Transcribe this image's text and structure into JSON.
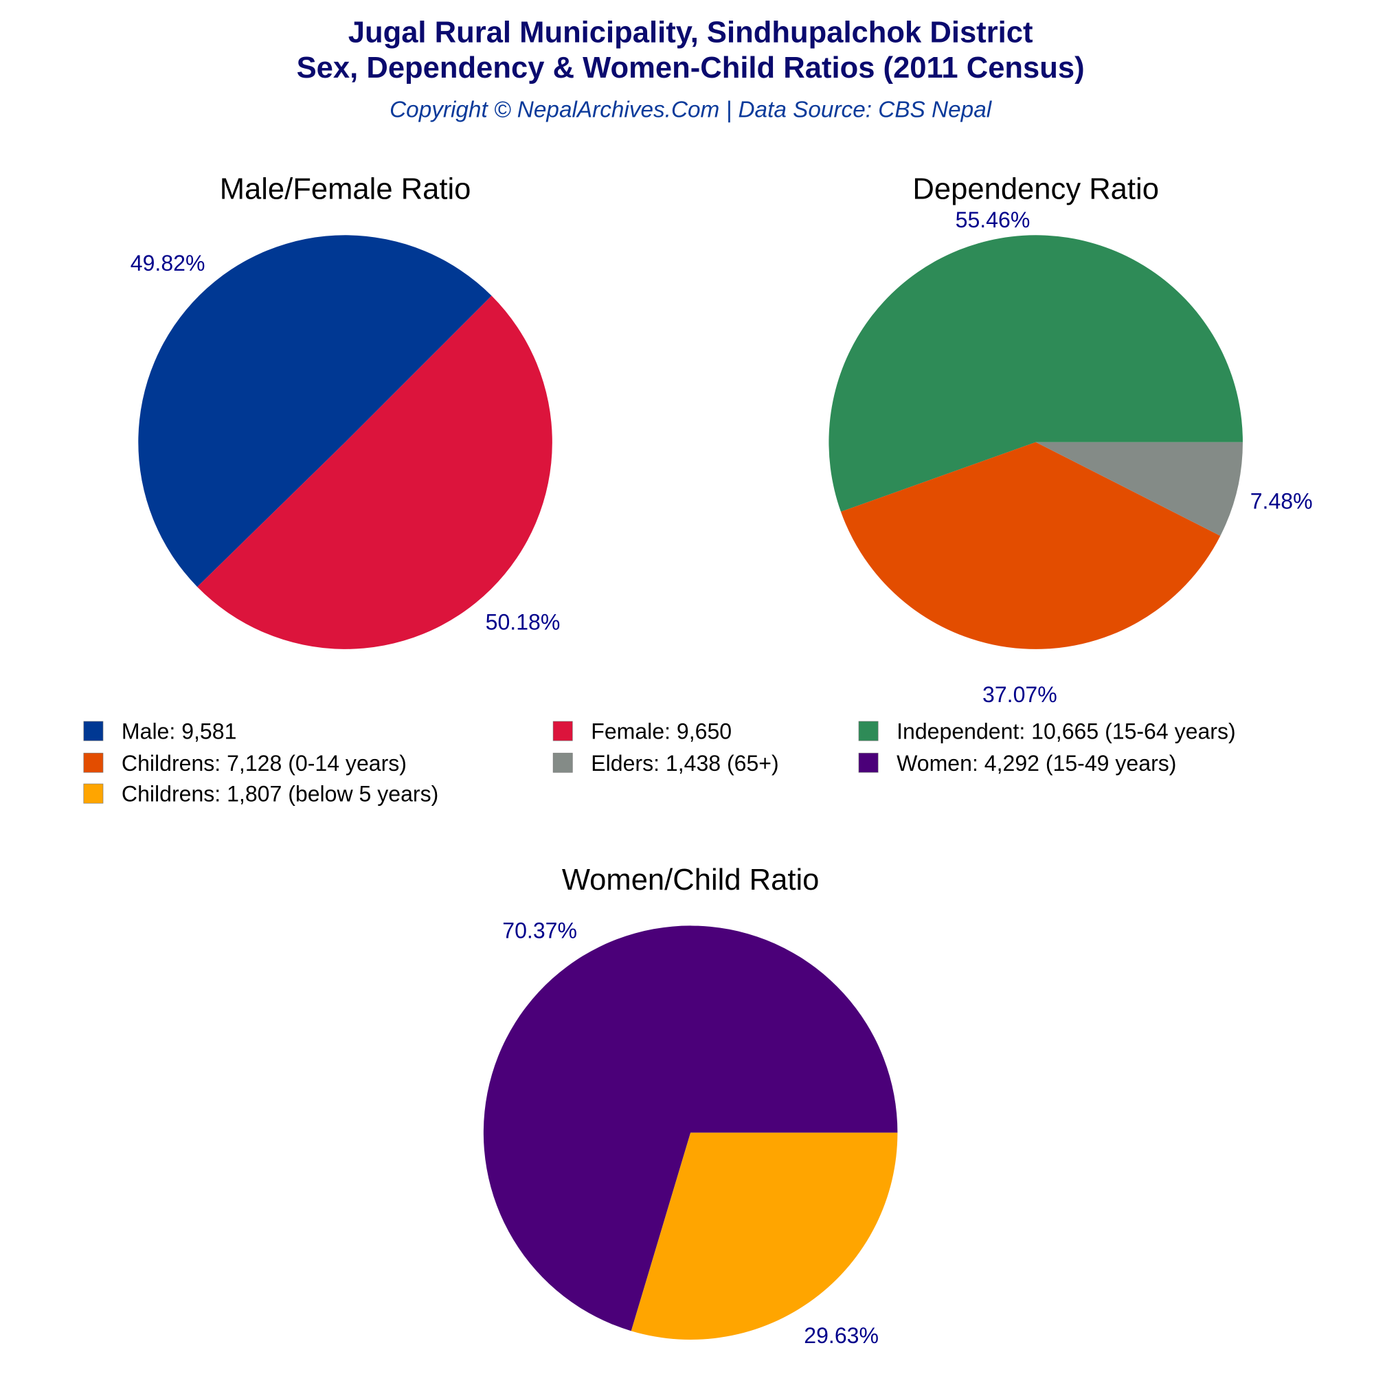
{
  "header": {
    "title_line1": "Jugal Rural Municipality, Sindhupalchok District",
    "title_line2": "Sex, Dependency & Women-Child Ratios (2011 Census)",
    "subtitle": "Copyright © NepalArchives.Com | Data Source: CBS Nepal"
  },
  "colors": {
    "title": "#0a0a6e",
    "subtitle": "#0a3a9a",
    "pct_label": "#00008b"
  },
  "chart_data": [
    {
      "type": "pie",
      "title": "Male/Female Ratio",
      "start_angle_deg": 45,
      "direction": "counterclockwise",
      "slices": [
        {
          "label": "Male",
          "value": 9581,
          "percent_label": "49.82%",
          "color": "#003893"
        },
        {
          "label": "Female",
          "value": 9650,
          "percent_label": "50.18%",
          "color": "#dc143c"
        }
      ]
    },
    {
      "type": "pie",
      "title": "Dependency Ratio",
      "start_angle_deg": 0,
      "direction": "counterclockwise",
      "slices": [
        {
          "label": "Independent",
          "value": 10665,
          "percent_label": "55.46%",
          "color": "#2e8b57"
        },
        {
          "label": "Childrens (0-14 years)",
          "value": 7128,
          "percent_label": "37.07%",
          "color": "#e34d00"
        },
        {
          "label": "Elders",
          "value": 1438,
          "percent_label": "7.48%",
          "color": "#848b87"
        }
      ]
    },
    {
      "type": "pie",
      "title": "Women/Child Ratio",
      "start_angle_deg": 0,
      "direction": "counterclockwise",
      "slices": [
        {
          "label": "Women",
          "value": 4292,
          "percent_label": "70.37%",
          "color": "#4b0079"
        },
        {
          "label": "Childrens (below 5 years)",
          "value": 1807,
          "percent_label": "29.63%",
          "color": "#ffa500"
        }
      ]
    }
  ],
  "legend": {
    "placement": "middle",
    "items": [
      {
        "text": "Male: 9,581",
        "color": "#003893"
      },
      {
        "text": "Female: 9,650",
        "color": "#dc143c"
      },
      {
        "text": "Independent: 10,665 (15-64 years)",
        "color": "#2e8b57"
      },
      {
        "text": "Childrens: 7,128 (0-14 years)",
        "color": "#e34d00"
      },
      {
        "text": "Elders: 1,438 (65+)",
        "color": "#848b87"
      },
      {
        "text": "Women: 4,292 (15-49 years)",
        "color": "#4b0079"
      },
      {
        "text": "Childrens: 1,807 (below 5 years)",
        "color": "#ffa500"
      }
    ]
  }
}
